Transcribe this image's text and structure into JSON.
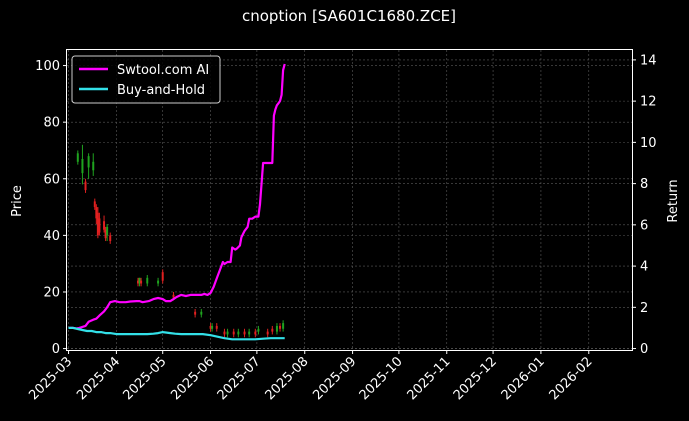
{
  "colors": {
    "background": "#000000",
    "text": "#ffffff",
    "grid": "#5a5a5a",
    "strategy": "#ff00ff",
    "benchmark": "#33e0e8",
    "candle_up": "#1fa31f",
    "candle_down": "#e02020"
  },
  "chart_data": {
    "type": "line",
    "title": "cnoption [SA601C1680.ZCE]",
    "xlabel": "",
    "ylabel": "Price",
    "y2label": "Return",
    "x_ticks": [
      "2025-03",
      "2025-04",
      "2025-05",
      "2025-06",
      "2025-07",
      "2025-08",
      "2025-09",
      "2025-10",
      "2025-11",
      "2025-12",
      "2026-01",
      "2026-02"
    ],
    "x_range": [
      "2025-02-28",
      "2026-03-01"
    ],
    "y_ticks": [
      0,
      20,
      40,
      60,
      80,
      100
    ],
    "ylim": [
      -0.5,
      105.5
    ],
    "y2_ticks": [
      0,
      2,
      4,
      6,
      8,
      10,
      12,
      14
    ],
    "y2lim": [
      -0.07,
      14.48
    ],
    "grid": true,
    "legend_position": "upper-left",
    "series": [
      {
        "name": "Swtool.com AI",
        "axis": "right",
        "color": "#ff00ff",
        "points": [
          [
            "2025-03-01",
            1.0
          ],
          [
            "2025-03-04",
            1.0
          ],
          [
            "2025-03-06",
            0.98
          ],
          [
            "2025-03-08",
            1.0
          ],
          [
            "2025-03-10",
            1.05
          ],
          [
            "2025-03-12",
            1.1
          ],
          [
            "2025-03-14",
            1.3
          ],
          [
            "2025-03-17",
            1.4
          ],
          [
            "2025-03-19",
            1.45
          ],
          [
            "2025-03-21",
            1.6
          ],
          [
            "2025-03-24",
            1.8
          ],
          [
            "2025-03-26",
            2.0
          ],
          [
            "2025-03-28",
            2.25
          ],
          [
            "2025-03-31",
            2.3
          ],
          [
            "2025-04-03",
            2.25
          ],
          [
            "2025-04-07",
            2.25
          ],
          [
            "2025-04-10",
            2.28
          ],
          [
            "2025-04-14",
            2.3
          ],
          [
            "2025-04-16",
            2.3
          ],
          [
            "2025-04-18",
            2.25
          ],
          [
            "2025-04-22",
            2.3
          ],
          [
            "2025-04-25",
            2.4
          ],
          [
            "2025-04-28",
            2.45
          ],
          [
            "2025-05-01",
            2.4
          ],
          [
            "2025-05-03",
            2.3
          ],
          [
            "2025-05-06",
            2.3
          ],
          [
            "2025-05-08",
            2.4
          ],
          [
            "2025-05-10",
            2.5
          ],
          [
            "2025-05-13",
            2.6
          ],
          [
            "2025-05-16",
            2.55
          ],
          [
            "2025-05-19",
            2.6
          ],
          [
            "2025-05-22",
            2.6
          ],
          [
            "2025-05-26",
            2.6
          ],
          [
            "2025-05-28",
            2.65
          ],
          [
            "2025-05-30",
            2.6
          ],
          [
            "2025-06-01",
            2.7
          ],
          [
            "2025-06-03",
            3.0
          ],
          [
            "2025-06-05",
            3.4
          ],
          [
            "2025-06-07",
            3.8
          ],
          [
            "2025-06-09",
            4.2
          ],
          [
            "2025-06-10",
            4.1
          ],
          [
            "2025-06-12",
            4.2
          ],
          [
            "2025-06-14",
            4.2
          ],
          [
            "2025-06-15",
            4.9
          ],
          [
            "2025-06-17",
            4.8
          ],
          [
            "2025-06-18",
            4.85
          ],
          [
            "2025-06-20",
            5.0
          ],
          [
            "2025-06-21",
            5.4
          ],
          [
            "2025-06-23",
            5.7
          ],
          [
            "2025-06-25",
            5.9
          ],
          [
            "2025-06-26",
            6.3
          ],
          [
            "2025-06-28",
            6.3
          ],
          [
            "2025-06-30",
            6.4
          ],
          [
            "2025-07-02",
            6.4
          ],
          [
            "2025-07-03",
            7.0
          ],
          [
            "2025-07-05",
            9.0
          ],
          [
            "2025-07-09",
            9.0
          ],
          [
            "2025-07-11",
            9.0
          ],
          [
            "2025-07-12",
            11.3
          ],
          [
            "2025-07-13",
            11.6
          ],
          [
            "2025-07-14",
            11.8
          ],
          [
            "2025-07-15",
            11.9
          ],
          [
            "2025-07-16",
            12.0
          ],
          [
            "2025-07-17",
            12.3
          ],
          [
            "2025-07-18",
            13.5
          ],
          [
            "2025-07-19",
            13.8
          ]
        ]
      },
      {
        "name": "Buy-and-Hold",
        "axis": "right",
        "color": "#33e0e8",
        "points": [
          [
            "2025-03-01",
            1.0
          ],
          [
            "2025-03-04",
            1.0
          ],
          [
            "2025-03-07",
            0.95
          ],
          [
            "2025-03-10",
            0.9
          ],
          [
            "2025-03-13",
            0.85
          ],
          [
            "2025-03-16",
            0.85
          ],
          [
            "2025-03-19",
            0.8
          ],
          [
            "2025-03-22",
            0.8
          ],
          [
            "2025-03-25",
            0.75
          ],
          [
            "2025-03-28",
            0.75
          ],
          [
            "2025-04-01",
            0.7
          ],
          [
            "2025-04-07",
            0.7
          ],
          [
            "2025-04-14",
            0.7
          ],
          [
            "2025-04-17",
            0.7
          ],
          [
            "2025-04-21",
            0.7
          ],
          [
            "2025-04-25",
            0.72
          ],
          [
            "2025-04-28",
            0.75
          ],
          [
            "2025-05-01",
            0.8
          ],
          [
            "2025-05-03",
            0.78
          ],
          [
            "2025-05-06",
            0.75
          ],
          [
            "2025-05-09",
            0.72
          ],
          [
            "2025-05-13",
            0.7
          ],
          [
            "2025-05-20",
            0.7
          ],
          [
            "2025-05-27",
            0.7
          ],
          [
            "2025-06-01",
            0.65
          ],
          [
            "2025-06-04",
            0.6
          ],
          [
            "2025-06-07",
            0.55
          ],
          [
            "2025-06-10",
            0.5
          ],
          [
            "2025-06-15",
            0.45
          ],
          [
            "2025-06-20",
            0.45
          ],
          [
            "2025-06-25",
            0.45
          ],
          [
            "2025-06-30",
            0.45
          ],
          [
            "2025-07-05",
            0.48
          ],
          [
            "2025-07-10",
            0.5
          ],
          [
            "2025-07-15",
            0.5
          ],
          [
            "2025-07-19",
            0.5
          ]
        ]
      }
    ],
    "candles": [
      {
        "date": "2025-03-07",
        "o": 66,
        "c": 69,
        "h": 70,
        "l": 65
      },
      {
        "date": "2025-03-10",
        "o": 62,
        "c": 67,
        "h": 72,
        "l": 58
      },
      {
        "date": "2025-03-12",
        "o": 59,
        "c": 56,
        "h": 60,
        "l": 55
      },
      {
        "date": "2025-03-14",
        "o": 64,
        "c": 68,
        "h": 69,
        "l": 60
      },
      {
        "date": "2025-03-17",
        "o": 63,
        "c": 66,
        "h": 69,
        "l": 61
      },
      {
        "date": "2025-03-18",
        "o": 52,
        "c": 50,
        "h": 53,
        "l": 49
      },
      {
        "date": "2025-03-19",
        "o": 50,
        "c": 46,
        "h": 51,
        "l": 44
      },
      {
        "date": "2025-03-20",
        "o": 48,
        "c": 40,
        "h": 50,
        "l": 39
      },
      {
        "date": "2025-03-21",
        "o": 46,
        "c": 41,
        "h": 48,
        "l": 40
      },
      {
        "date": "2025-03-24",
        "o": 45,
        "c": 42,
        "h": 47,
        "l": 41
      },
      {
        "date": "2025-03-25",
        "o": 42,
        "c": 39,
        "h": 43,
        "l": 38
      },
      {
        "date": "2025-03-26",
        "o": 40,
        "c": 43,
        "h": 44,
        "l": 38
      },
      {
        "date": "2025-03-28",
        "o": 40,
        "c": 38,
        "h": 41,
        "l": 37
      },
      {
        "date": "2025-04-15",
        "o": 24,
        "c": 23,
        "h": 25,
        "l": 22
      },
      {
        "date": "2025-04-16",
        "o": 23,
        "c": 25,
        "h": 25,
        "l": 22
      },
      {
        "date": "2025-04-17",
        "o": 24,
        "c": 23,
        "h": 25,
        "l": 22
      },
      {
        "date": "2025-04-21",
        "o": 23,
        "c": 25,
        "h": 26,
        "l": 22
      },
      {
        "date": "2025-04-28",
        "o": 23,
        "c": 24,
        "h": 25,
        "l": 22
      },
      {
        "date": "2025-05-01",
        "o": 27,
        "c": 24,
        "h": 28,
        "l": 23
      },
      {
        "date": "2025-05-08",
        "o": 19,
        "c": 18,
        "h": 20,
        "l": 17
      },
      {
        "date": "2025-05-22",
        "o": 13,
        "c": 12,
        "h": 14,
        "l": 11
      },
      {
        "date": "2025-05-26",
        "o": 12,
        "c": 13,
        "h": 14,
        "l": 11
      },
      {
        "date": "2025-06-01",
        "o": 8,
        "c": 7,
        "h": 9,
        "l": 6
      },
      {
        "date": "2025-06-02",
        "o": 7,
        "c": 8,
        "h": 9,
        "l": 6
      },
      {
        "date": "2025-06-05",
        "o": 8,
        "c": 7,
        "h": 9,
        "l": 6
      },
      {
        "date": "2025-06-10",
        "o": 6,
        "c": 5,
        "h": 7,
        "l": 4
      },
      {
        "date": "2025-06-12",
        "o": 5,
        "c": 6,
        "h": 7,
        "l": 4
      },
      {
        "date": "2025-06-16",
        "o": 6,
        "c": 5,
        "h": 7,
        "l": 4
      },
      {
        "date": "2025-06-19",
        "o": 5,
        "c": 6,
        "h": 7,
        "l": 4
      },
      {
        "date": "2025-06-23",
        "o": 6,
        "c": 5,
        "h": 7,
        "l": 4
      },
      {
        "date": "2025-06-26",
        "o": 5,
        "c": 6,
        "h": 7,
        "l": 4
      },
      {
        "date": "2025-06-30",
        "o": 6,
        "c": 5,
        "h": 7,
        "l": 4
      },
      {
        "date": "2025-07-02",
        "o": 6,
        "c": 7,
        "h": 8,
        "l": 5
      },
      {
        "date": "2025-07-08",
        "o": 6,
        "c": 5,
        "h": 7,
        "l": 4
      },
      {
        "date": "2025-07-11",
        "o": 7,
        "c": 6,
        "h": 8,
        "l": 5
      },
      {
        "date": "2025-07-14",
        "o": 6,
        "c": 8,
        "h": 9,
        "l": 5
      },
      {
        "date": "2025-07-16",
        "o": 8,
        "c": 7,
        "h": 9,
        "l": 6
      },
      {
        "date": "2025-07-18",
        "o": 7,
        "c": 9,
        "h": 10,
        "l": 6
      }
    ]
  }
}
